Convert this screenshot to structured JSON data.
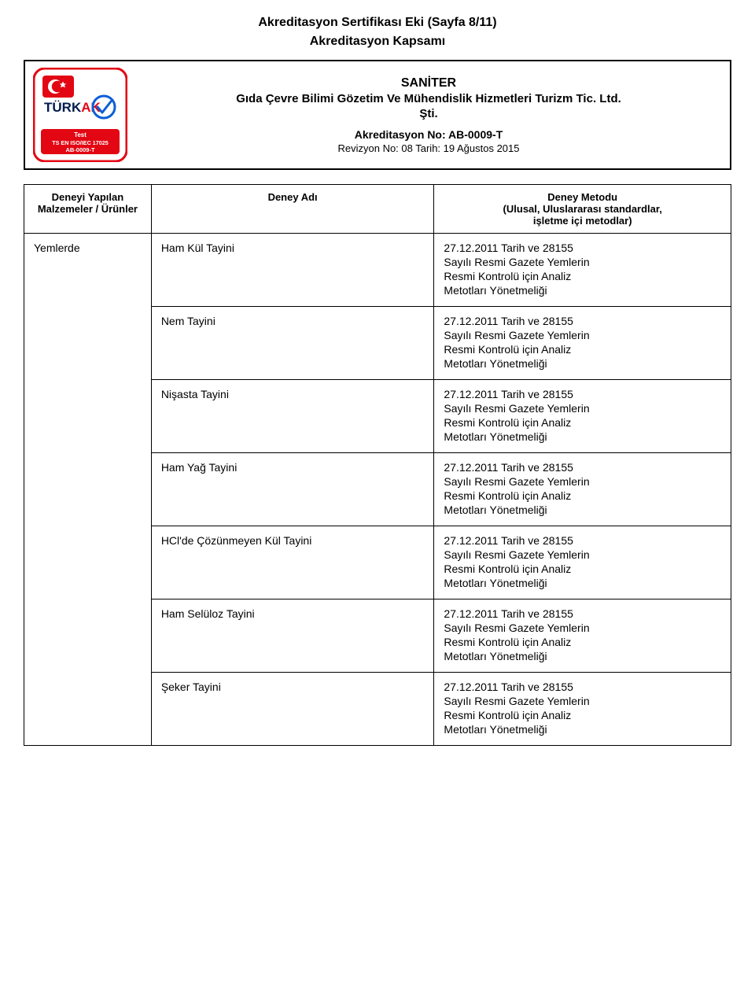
{
  "page": {
    "title": "Akreditasyon Sertifikası Eki (Sayfa 8/11)",
    "subtitle": "Akreditasyon Kapsamı"
  },
  "logo": {
    "brand": "TÜRKAK",
    "test_label": "Test",
    "standard": "TS EN ISO/IEC 17025",
    "code": "AB-0009-T",
    "red": "#e30613",
    "dark": "#001b4d",
    "blue": "#0b5ed7",
    "box_bg": "#ffffff"
  },
  "header": {
    "org_name": "SANİTER",
    "org_desc": "Gıda Çevre Bilimi Gözetim Ve Mühendislik Hizmetleri Turizm Tic. Ltd.",
    "org_sti": "Şti.",
    "akred_no": "Akreditasyon No: AB-0009-T",
    "rev": "Revizyon No: 08 Tarih: 19 Ağustos 2015"
  },
  "table": {
    "headers": {
      "materials_l1": "Deneyi Yapılan",
      "materials_l2": "Malzemeler / Ürünler",
      "test_name": "Deney Adı",
      "method_l1": "Deney Metodu",
      "method_l2": "(Ulusal, Uluslararası standardlar,",
      "method_l3": "işletme içi metodlar)"
    },
    "material": "Yemlerde",
    "rows": [
      {
        "test": "Ham Kül Tayini"
      },
      {
        "test": "Nem Tayini"
      },
      {
        "test": "Nişasta Tayini"
      },
      {
        "test": "Ham Yağ Tayini"
      },
      {
        "test": "HCl'de Çözünmeyen Kül Tayini"
      },
      {
        "test": "Ham Selüloz Tayini"
      },
      {
        "test": "Şeker Tayini"
      }
    ],
    "method_lines": {
      "l1": "27.12.2011 Tarih ve 28155",
      "l2": "Sayılı Resmi Gazete Yemlerin",
      "l3": "Resmi Kontrolü için Analiz",
      "l4": "Metotları Yönetmeliği"
    }
  }
}
